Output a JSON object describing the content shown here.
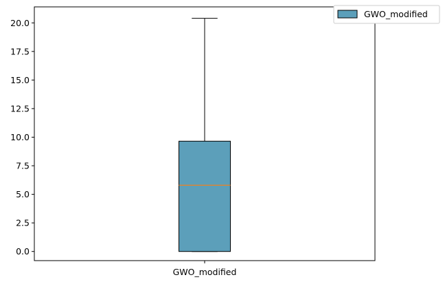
{
  "chart_data": {
    "type": "box",
    "categories": [
      "GWO_modified"
    ],
    "series": [
      {
        "name": "GWO_modified",
        "whisker_low": 0.0,
        "q1": 0.0,
        "median": 5.8,
        "q3": 9.65,
        "whisker_high": 20.4
      }
    ],
    "ylim": [
      -0.8,
      21.4
    ],
    "yticks": [
      "0.0",
      "2.5",
      "5.0",
      "7.5",
      "10.0",
      "12.5",
      "15.0",
      "17.5",
      "20.0"
    ],
    "legend": [
      "GWO_modified"
    ],
    "legend_position": "top-right",
    "grid": false,
    "colors": {
      "box_fill": "#5c9fba",
      "median": "#ff7f0e",
      "edge": "#000000"
    }
  }
}
